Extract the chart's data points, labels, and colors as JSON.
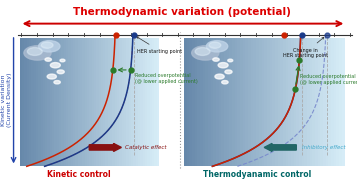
{
  "title": "Thermodynamic variation (potential)",
  "title_color": "#dd0000",
  "title_fontsize": 7.5,
  "left_label": "Kinetic control",
  "right_label": "Thermodyanamic control",
  "bottom_label_color_left": "#cc0000",
  "bottom_label_color_right": "#006666",
  "ylabel": "Kinetic variation\n(Current Density)",
  "ylabel_color": "#2244aa",
  "bg_color": "#ffffff",
  "arrow_thermo_color": "#cc0000",
  "arrow_kinetic_color": "#2244aa",
  "catalytic_arrow_color": "#881111",
  "inhibitory_arrow_color": "#226666",
  "catalytic_text": "Catalytic effect",
  "inhibitory_text": "Inhibitory effect",
  "her_text_left": "HER starting point",
  "her_text_right": "Change in\nHER starting point",
  "overpotential_text": "Reduced overpotential\n(@ lower applied current)",
  "curve_blue_color": "#1a3a8a",
  "curve_red_color": "#cc2200",
  "curve_dashed_blue_color": "#7788cc",
  "curve_dashed_red_color": "#dd4422",
  "green_dot_color": "#2a7a2a",
  "red_dot_color": "#cc2200",
  "blue_dot_color": "#1a3a8a",
  "divider_color": "#999999",
  "axis_color": "#333333",
  "inhibitory_text_color": "#44aacc"
}
